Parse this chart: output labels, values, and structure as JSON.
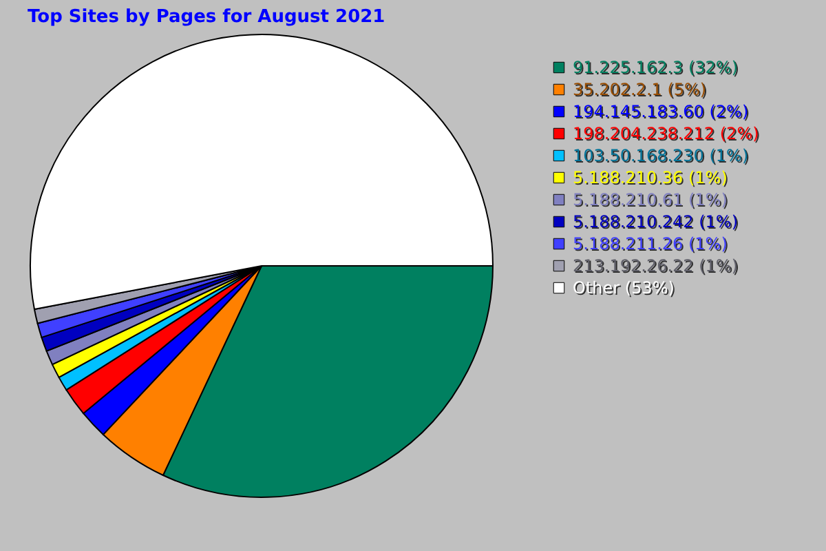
{
  "chart_data": {
    "type": "pie",
    "title": "Top Sites by Pages for August 2021",
    "categories": [
      "91.225.162.3 (32%)",
      "35.202.2.1 (5%)",
      "194.145.183.60 (2%)",
      "198.204.238.212 (2%)",
      "103.50.168.230 (1%)",
      "5.188.210.36 (1%)",
      "5.188.210.61 (1%)",
      "5.188.210.242 (1%)",
      "5.188.211.26 (1%)",
      "213.192.26.22 (1%)",
      "Other (53%)"
    ],
    "values": [
      32,
      5,
      2,
      2,
      1,
      1,
      1,
      1,
      1,
      1,
      53
    ],
    "colors": [
      "#008060",
      "#ff8000",
      "#0000ff",
      "#ff0000",
      "#00c0ff",
      "#ffff00",
      "#8080c0",
      "#0000c0",
      "#4040ff",
      "#a0a0b0",
      "#ffffff"
    ],
    "legend": "right"
  }
}
